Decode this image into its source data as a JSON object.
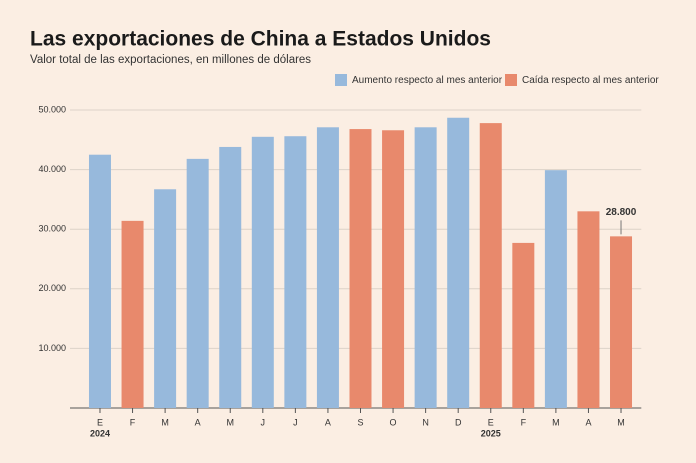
{
  "chart_data": {
    "type": "bar",
    "title": "Las exportaciones de China a Estados Unidos",
    "subtitle": "Valor total de las exportaciones, en millones de dólares",
    "categories": [
      "E",
      "F",
      "M",
      "A",
      "M",
      "J",
      "J",
      "A",
      "S",
      "O",
      "N",
      "D",
      "E",
      "F",
      "M",
      "A",
      "M"
    ],
    "year_row": [
      "2024",
      null,
      null,
      null,
      null,
      null,
      null,
      null,
      null,
      null,
      null,
      null,
      "2025",
      null,
      null,
      null,
      null
    ],
    "series": [
      {
        "name": "Aumento respecto al mes anterior",
        "color": "#97b9dc",
        "values": [
          42500,
          null,
          36700,
          41800,
          43800,
          45500,
          45600,
          47100,
          null,
          null,
          47100,
          48700,
          null,
          null,
          39900,
          null,
          null
        ]
      },
      {
        "name": "Caída respecto al mes anterior",
        "color": "#e8896c",
        "values": [
          null,
          31400,
          null,
          null,
          null,
          null,
          null,
          null,
          46800,
          46600,
          null,
          null,
          47800,
          27700,
          null,
          33000,
          28800
        ],
        "value_labels": [
          null,
          null,
          null,
          null,
          null,
          null,
          null,
          null,
          null,
          null,
          null,
          null,
          null,
          null,
          null,
          null,
          "28.800"
        ]
      }
    ],
    "ylim": [
      0,
      50000
    ],
    "yticks": [
      {
        "value": 10000,
        "label": "10.000"
      },
      {
        "value": 20000,
        "label": "20.000"
      },
      {
        "value": 30000,
        "label": "30.000"
      },
      {
        "value": 40000,
        "label": "40.000"
      },
      {
        "value": 50000,
        "label": "50.000"
      }
    ],
    "grid": true
  }
}
